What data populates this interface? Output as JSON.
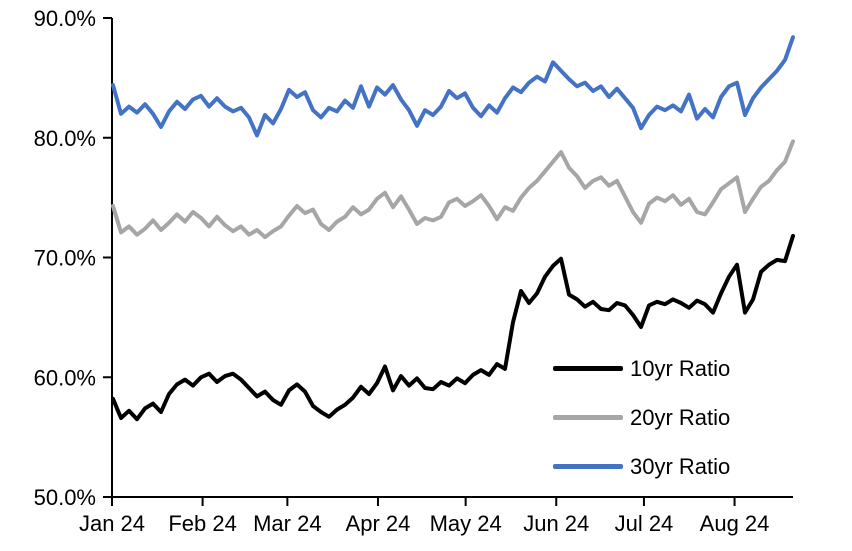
{
  "chart_data": {
    "type": "line",
    "title": "",
    "xlabel": "",
    "ylabel": "",
    "ylim": [
      50,
      90
    ],
    "grid": false,
    "legend_position": "inside-bottom-right",
    "y_ticks": [
      {
        "value": 90,
        "label": "90.0%"
      },
      {
        "value": 80,
        "label": "80.0%"
      },
      {
        "value": 70,
        "label": "70.0%"
      },
      {
        "value": 60,
        "label": "60.0%"
      },
      {
        "value": 50,
        "label": "50.0%"
      }
    ],
    "x_ticks": [
      {
        "label": "Jan 24",
        "day_offset": 0
      },
      {
        "label": "Feb 24",
        "day_offset": 31
      },
      {
        "label": "Mar 24",
        "day_offset": 60
      },
      {
        "label": "Apr 24",
        "day_offset": 91
      },
      {
        "label": "May 24",
        "day_offset": 121
      },
      {
        "label": "Jun 24",
        "day_offset": 152
      },
      {
        "label": "Jul 24",
        "day_offset": 182
      },
      {
        "label": "Aug 24",
        "day_offset": 213
      }
    ],
    "x_total_days": 233,
    "series": [
      {
        "name": "10yr Ratio",
        "color": "#000000",
        "values": [
          58.2,
          56.6,
          57.2,
          56.5,
          57.4,
          57.8,
          57.1,
          58.6,
          59.4,
          59.8,
          59.3,
          60.0,
          60.3,
          59.6,
          60.1,
          60.3,
          59.8,
          59.1,
          58.4,
          58.8,
          58.1,
          57.7,
          58.9,
          59.4,
          58.8,
          57.6,
          57.1,
          56.7,
          57.3,
          57.7,
          58.3,
          59.2,
          58.6,
          59.5,
          60.9,
          58.9,
          60.1,
          59.3,
          59.9,
          59.1,
          59.0,
          59.6,
          59.3,
          59.9,
          59.5,
          60.2,
          60.6,
          60.2,
          61.1,
          60.7,
          64.6,
          67.2,
          66.2,
          67.0,
          68.4,
          69.3,
          69.9,
          66.9,
          66.5,
          65.9,
          66.3,
          65.7,
          65.6,
          66.2,
          66.0,
          65.2,
          64.2,
          66.0,
          66.3,
          66.1,
          66.5,
          66.2,
          65.8,
          66.4,
          66.1,
          65.4,
          67.0,
          68.4,
          69.4,
          65.4,
          66.5,
          68.8,
          69.4,
          69.8,
          69.7,
          71.8
        ]
      },
      {
        "name": "20yr Ratio",
        "color": "#A6A6A6",
        "values": [
          74.3,
          72.1,
          72.6,
          71.9,
          72.4,
          73.1,
          72.3,
          72.9,
          73.6,
          73.0,
          73.8,
          73.3,
          72.6,
          73.4,
          72.7,
          72.2,
          72.6,
          71.9,
          72.3,
          71.7,
          72.2,
          72.6,
          73.5,
          74.3,
          73.7,
          74.0,
          72.8,
          72.3,
          73.0,
          73.4,
          74.2,
          73.6,
          74.0,
          74.9,
          75.4,
          74.2,
          75.1,
          74.0,
          72.8,
          73.3,
          73.1,
          73.4,
          74.6,
          74.9,
          74.3,
          74.7,
          75.2,
          74.3,
          73.2,
          74.2,
          73.9,
          75.0,
          75.8,
          76.4,
          77.2,
          78.0,
          78.8,
          77.5,
          76.8,
          75.8,
          76.4,
          76.7,
          76.0,
          76.4,
          75.1,
          73.8,
          72.9,
          74.5,
          75.0,
          74.7,
          75.2,
          74.4,
          74.9,
          73.8,
          73.6,
          74.6,
          75.7,
          76.2,
          76.7,
          73.8,
          74.9,
          75.9,
          76.4,
          77.3,
          78.0,
          79.7
        ]
      },
      {
        "name": "30yr Ratio",
        "color": "#4472C4",
        "values": [
          84.4,
          82.0,
          82.6,
          82.1,
          82.8,
          82.0,
          80.9,
          82.2,
          83.0,
          82.4,
          83.2,
          83.5,
          82.6,
          83.3,
          82.6,
          82.2,
          82.5,
          81.7,
          80.2,
          81.9,
          81.2,
          82.4,
          84.0,
          83.4,
          83.8,
          82.3,
          81.7,
          82.5,
          82.2,
          83.1,
          82.5,
          84.3,
          82.6,
          84.2,
          83.6,
          84.4,
          83.2,
          82.3,
          81.0,
          82.3,
          81.9,
          82.6,
          83.9,
          83.3,
          83.7,
          82.5,
          81.8,
          82.7,
          82.1,
          83.3,
          84.2,
          83.8,
          84.6,
          85.1,
          84.7,
          86.3,
          85.6,
          84.9,
          84.3,
          84.6,
          83.9,
          84.3,
          83.4,
          84.1,
          83.3,
          82.5,
          80.8,
          81.9,
          82.6,
          82.3,
          82.7,
          82.2,
          83.6,
          81.6,
          82.4,
          81.7,
          83.4,
          84.3,
          84.6,
          81.9,
          83.3,
          84.2,
          84.9,
          85.6,
          86.5,
          88.4
        ]
      }
    ],
    "axis_color": "#000000"
  }
}
